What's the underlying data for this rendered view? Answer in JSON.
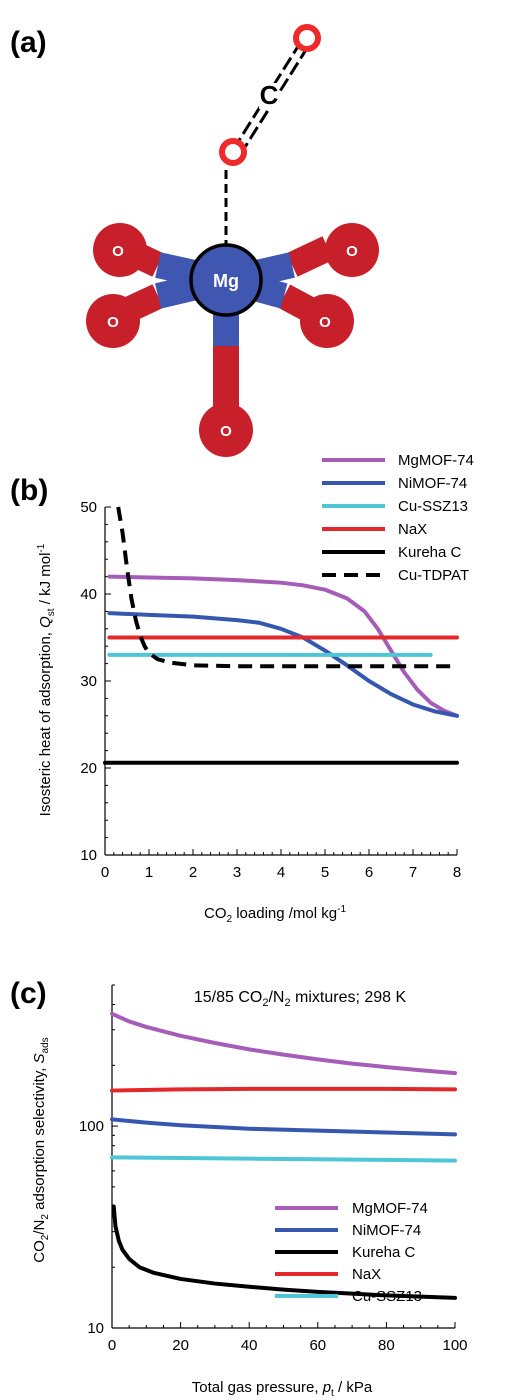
{
  "panels": {
    "a": "(a)",
    "b": "(b)",
    "c": "(c)"
  },
  "molecule": {
    "center": "Mg",
    "ligands": [
      "O",
      "O",
      "O",
      "O",
      "O"
    ],
    "co2_carbon": "C",
    "colors": {
      "metal": "#3f57b0",
      "oxygen": "#c8202b",
      "co2_oxygen": "#ee2a2a"
    }
  },
  "chart_data": [
    {
      "type": "line",
      "title": "",
      "xlabel": "CO2 loading /mol kg-1",
      "ylabel": "Isosteric heat of adsorption, Qst / kJ mol-1",
      "xlim": [
        0,
        8
      ],
      "ylim": [
        10,
        50
      ],
      "xticks": [
        "0",
        "1",
        "2",
        "3",
        "4",
        "5",
        "6",
        "7",
        "8"
      ],
      "yticks": [
        "10",
        "20",
        "30",
        "40",
        "50"
      ],
      "legend_position": "top-right",
      "series": [
        {
          "name": "MgMOF-74",
          "color": "#a55db8",
          "style": "solid",
          "x": [
            0.1,
            1,
            2,
            3,
            4,
            4.5,
            5,
            5.5,
            5.9,
            6.2,
            6.5,
            6.8,
            7.1,
            7.4,
            7.7,
            8
          ],
          "y": [
            42,
            41.9,
            41.8,
            41.6,
            41.3,
            41.0,
            40.5,
            39.5,
            38,
            36,
            33.5,
            31,
            29,
            27.5,
            26.6,
            26
          ]
        },
        {
          "name": "NiMOF-74",
          "color": "#3657b0",
          "style": "solid",
          "x": [
            0.1,
            1,
            2,
            3,
            3.5,
            4,
            4.5,
            5,
            5.5,
            6,
            6.5,
            7,
            7.5,
            8
          ],
          "y": [
            37.8,
            37.6,
            37.4,
            37.0,
            36.7,
            36.0,
            35,
            33.5,
            31.8,
            30,
            28.5,
            27.3,
            26.5,
            26
          ]
        },
        {
          "name": "Cu-SSZ13",
          "color": "#4fc6d6",
          "style": "solid",
          "x": [
            0.1,
            7.4
          ],
          "y": [
            33,
            33
          ]
        },
        {
          "name": "NaX",
          "color": "#e3282b",
          "style": "solid",
          "x": [
            0.1,
            8
          ],
          "y": [
            35,
            35
          ]
        },
        {
          "name": "Kureha C",
          "color": "#000000",
          "style": "solid",
          "x": [
            0,
            8
          ],
          "y": [
            20.6,
            20.6
          ]
        },
        {
          "name": "Cu-TDPAT",
          "color": "#000000",
          "style": "dashed",
          "x": [
            0.3,
            0.4,
            0.5,
            0.6,
            0.7,
            0.8,
            0.9,
            1.0,
            1.2,
            1.5,
            2,
            3,
            4,
            5,
            6,
            7,
            8
          ],
          "y": [
            50,
            47,
            43,
            39.5,
            37,
            35.2,
            34,
            33.2,
            32.5,
            32.1,
            31.8,
            31.7,
            31.7,
            31.7,
            31.7,
            31.7,
            31.7
          ]
        }
      ]
    },
    {
      "type": "line",
      "title": "15/85 CO2/N2 mixtures; 298 K",
      "xlabel": "Total gas pressure, pt / kPa",
      "ylabel": "CO2/N2 adsorption selectivity, Sads",
      "xlim": [
        0,
        100
      ],
      "ylim": [
        10,
        500
      ],
      "yscale": "log",
      "xticks": [
        "0",
        "20",
        "40",
        "60",
        "80",
        "100"
      ],
      "yticks": [
        "10",
        "100"
      ],
      "legend_position": "bottom-right",
      "series": [
        {
          "name": "MgMOF-74",
          "color": "#a55db8",
          "style": "solid",
          "x": [
            0,
            5,
            10,
            20,
            30,
            40,
            50,
            60,
            70,
            80,
            90,
            100
          ],
          "y": [
            360,
            330,
            310,
            280,
            258,
            240,
            226,
            214,
            204,
            196,
            189,
            183
          ]
        },
        {
          "name": "NiMOF-74",
          "color": "#3657b0",
          "style": "solid",
          "x": [
            0,
            10,
            20,
            40,
            60,
            80,
            100
          ],
          "y": [
            108,
            104,
            101,
            97,
            95,
            93,
            91
          ]
        },
        {
          "name": "Kureha C",
          "color": "#000000",
          "style": "solid",
          "x": [
            0.5,
            1,
            2,
            3,
            5,
            8,
            12,
            20,
            30,
            40,
            50,
            60,
            70,
            80,
            90,
            100
          ],
          "y": [
            40,
            32,
            27,
            24.5,
            22,
            20,
            18.8,
            17.5,
            16.6,
            16,
            15.5,
            15.1,
            14.8,
            14.5,
            14.3,
            14.1
          ]
        },
        {
          "name": "NaX",
          "color": "#e3282b",
          "style": "solid",
          "x": [
            0,
            20,
            40,
            60,
            80,
            100
          ],
          "y": [
            150,
            152,
            153,
            153,
            153,
            152
          ]
        },
        {
          "name": "Cu-SSZ13",
          "color": "#4fc6d6",
          "style": "solid",
          "x": [
            0,
            20,
            40,
            60,
            80,
            100
          ],
          "y": [
            70,
            69.5,
            69,
            68.5,
            68,
            67.5
          ]
        }
      ]
    }
  ]
}
